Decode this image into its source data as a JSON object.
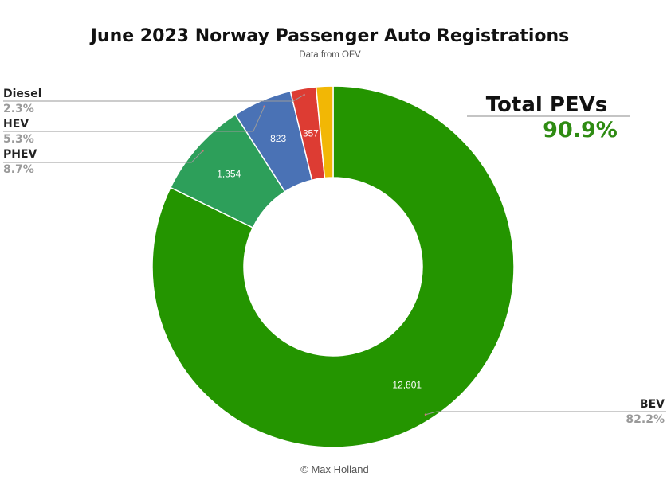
{
  "chart_data": {
    "type": "pie",
    "donut": true,
    "title": "June 2023 Norway Passenger Auto Registrations",
    "subtitle": "Data from OFV",
    "credit": "© Max Holland",
    "slices": [
      {
        "name": "BEV",
        "value": 12801,
        "value_label": "12,801",
        "percent_label": "82.2%",
        "color": "#249500"
      },
      {
        "name": "PHEV",
        "value": 1354,
        "value_label": "1,354",
        "percent_label": "8.7%",
        "color": "#2d9f5a"
      },
      {
        "name": "HEV",
        "value": 823,
        "value_label": "823",
        "percent_label": "5.3%",
        "color": "#4a72b5"
      },
      {
        "name": "Diesel",
        "value": 357,
        "value_label": "357",
        "percent_label": "2.3%",
        "color": "#dd3c33"
      },
      {
        "name": "",
        "value": 234,
        "value_label": "",
        "percent_label": "",
        "color": "#f2b705"
      }
    ],
    "callout": {
      "label": "Total PEVs",
      "value": "90.9%",
      "value_color": "#2e8b12"
    }
  }
}
